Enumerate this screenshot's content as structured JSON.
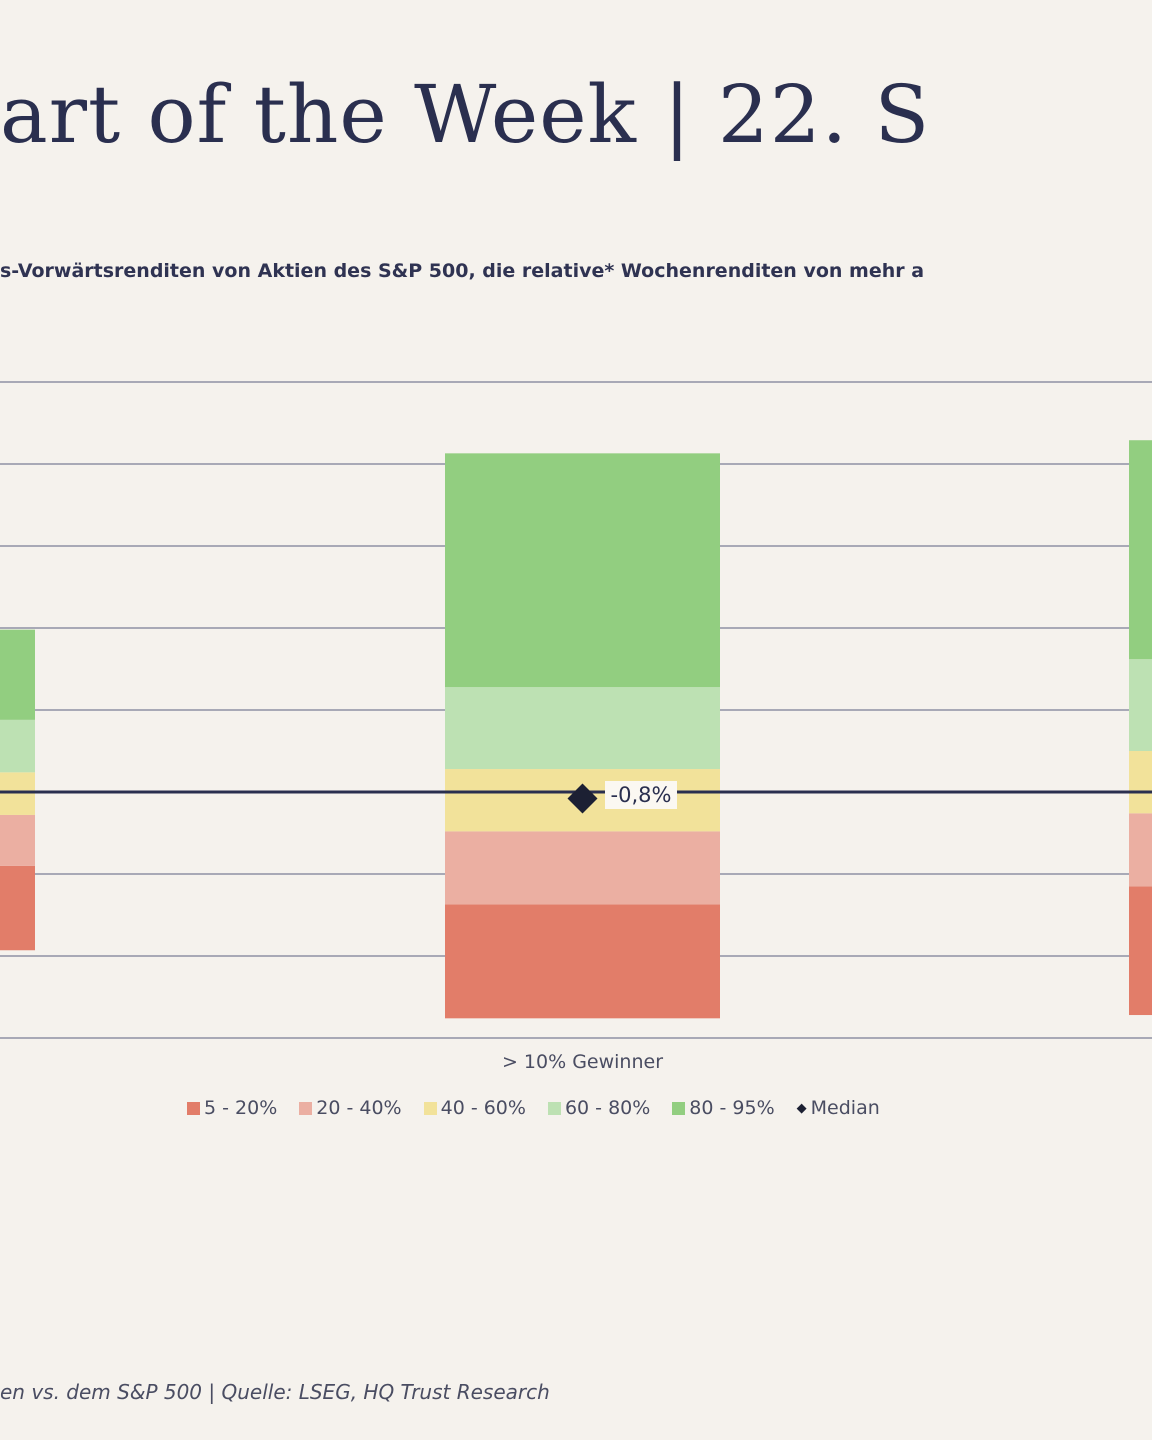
{
  "header": {
    "title": "art of the Week | 22. S",
    "subtitle": "s-Vorwärtsrenditen von Aktien des S&P 500, die relative* Wochenrenditen von mehr a"
  },
  "footer": "en vs. dem S&P 500 | Quelle: LSEG, HQ Trust Research",
  "chart_data": {
    "type": "bar",
    "stacked": true,
    "title": "",
    "xlabel": "",
    "ylabel": "",
    "ylim": [
      -30,
      50
    ],
    "grid": true,
    "gridline_step": 10,
    "legend_placement": "bottom-center",
    "categories": [
      "",
      "> 10% Gewinner",
      ""
    ],
    "percentile_bands": [
      {
        "name": "5 - 20%",
        "color": "#e27d69"
      },
      {
        "name": "20 - 40%",
        "color": "#ebafa2"
      },
      {
        "name": "40 - 60%",
        "color": "#f2e29a"
      },
      {
        "name": "60 - 80%",
        "color": "#bde1b3"
      },
      {
        "name": "80 - 95%",
        "color": "#92ce80"
      }
    ],
    "series_bounds": [
      [
        -19.3,
        -9.0,
        -2.8,
        2.4,
        8.8,
        19.8
      ],
      [
        -27.6,
        -13.7,
        -4.8,
        2.8,
        12.8,
        41.3
      ],
      [
        -27.2,
        -11.5,
        -2.6,
        5.0,
        16.2,
        42.9
      ]
    ],
    "median": {
      "name": "Median",
      "values": [
        null,
        -0.8,
        null
      ],
      "labels": [
        "",
        "-0,8%",
        ""
      ],
      "color": "#1c2033"
    }
  }
}
